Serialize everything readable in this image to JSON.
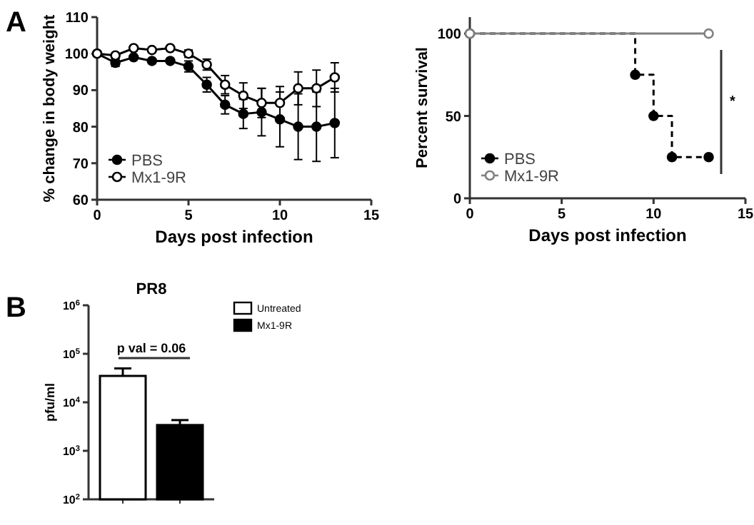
{
  "chart_data": [
    {
      "type": "line",
      "xlabel": "Days post infection",
      "ylabel": "% change in body weight",
      "x": [
        0,
        1,
        2,
        3,
        4,
        5,
        6,
        7,
        8,
        9,
        10,
        11,
        12,
        13
      ],
      "xlim": [
        0,
        15
      ],
      "xticks": [
        0,
        5,
        10,
        15
      ],
      "ylim": [
        60,
        110
      ],
      "yticks": [
        60,
        70,
        80,
        90,
        100,
        110
      ],
      "marker": "circle",
      "legend": "bottom left",
      "annotations": [
        "A"
      ],
      "series": [
        {
          "name": "PBS",
          "color": "#000000",
          "values": [
            100,
            97.5,
            99,
            98,
            98,
            96.5,
            91.5,
            86,
            83.5,
            84,
            82,
            80,
            80,
            81
          ],
          "errors": [
            null,
            1,
            null,
            null,
            null,
            1.5,
            2,
            2.5,
            4,
            6.5,
            7.5,
            9,
            9.5,
            9.5
          ]
        },
        {
          "name": "Mx1-9R",
          "color": "#000000",
          "values": [
            100,
            99.5,
            101.5,
            101,
            101.5,
            100,
            97,
            91.5,
            88.5,
            86.5,
            86.5,
            90.5,
            90.5,
            93.5
          ],
          "errors": [
            null,
            null,
            null,
            null,
            null,
            1,
            1.5,
            2.5,
            3.5,
            4,
            4.5,
            4.5,
            5,
            4
          ]
        }
      ]
    },
    {
      "type": "step",
      "xlabel": "Days post infection",
      "ylabel": "Percent survival",
      "xlim": [
        0,
        15
      ],
      "xticks": [
        0,
        5,
        10,
        15
      ],
      "ylim": [
        0,
        110
      ],
      "yticks": [
        0,
        50,
        100
      ],
      "marker": "circle",
      "legend": "bottom left",
      "annotations": [
        "*"
      ],
      "series": [
        {
          "name": "PBS",
          "color": "#000000",
          "line_style": "dashed",
          "x": [
            0,
            9,
            10,
            11,
            13
          ],
          "values": [
            100,
            75,
            50,
            25,
            25
          ]
        },
        {
          "name": "Mx1-9R",
          "color": "#808080",
          "line_style": "solid",
          "x": [
            0,
            13
          ],
          "values": [
            100,
            100
          ]
        }
      ]
    },
    {
      "type": "bar",
      "title": "PR8",
      "ylabel": "pfu/ml",
      "categories": [
        null,
        null
      ],
      "log": true,
      "ylim": [
        100,
        1000000
      ],
      "yticks": [
        {
          "value": 100,
          "label": "10$^{2}$"
        },
        {
          "value": 1000,
          "label": "10$^{3}$"
        },
        {
          "value": 10000,
          "label": "10$^{4}$"
        },
        {
          "value": 100000,
          "label": "10$^{5}$"
        },
        {
          "value": 1000000,
          "label": "10$^{6}$"
        }
      ],
      "legend": "top right",
      "annotations": [
        "B",
        "p val = 0.06"
      ],
      "series": [
        {
          "name": "Untreated",
          "color": "#ffffff",
          "values": [
            35000,
            null
          ],
          "errors": [
            [
              35000,
              50000
            ],
            null
          ]
        },
        {
          "name": "Mx1-9R",
          "color": "#000000",
          "values": [
            null,
            3400
          ],
          "errors": [
            null,
            [
              3400,
              4300
            ]
          ]
        }
      ]
    }
  ]
}
